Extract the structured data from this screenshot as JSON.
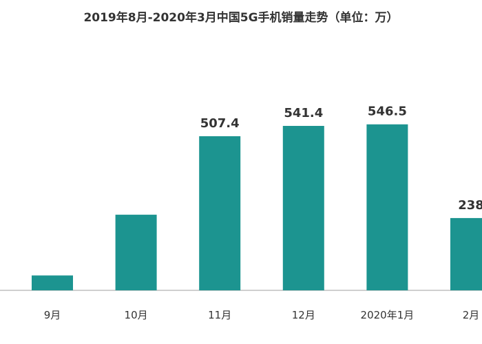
{
  "chart_data": {
    "type": "bar",
    "title": "2019年8月-2020年3月中国5G手机销量走势（单位：万）",
    "xlabel": "",
    "ylabel": "",
    "categories": [
      "9月",
      "10月",
      "11月",
      "12月",
      "2020年1月",
      "2月"
    ],
    "values": [
      49,
      249,
      507.4,
      541.4,
      546.5,
      238
    ],
    "data_labels": [
      "",
      "",
      "507.4",
      "541.4",
      "546.5",
      "238"
    ],
    "ylim": [
      0,
      600
    ],
    "grid": false,
    "legend": "none",
    "bar_color": "#1c9490",
    "axis_color": "#bfbfbf"
  }
}
